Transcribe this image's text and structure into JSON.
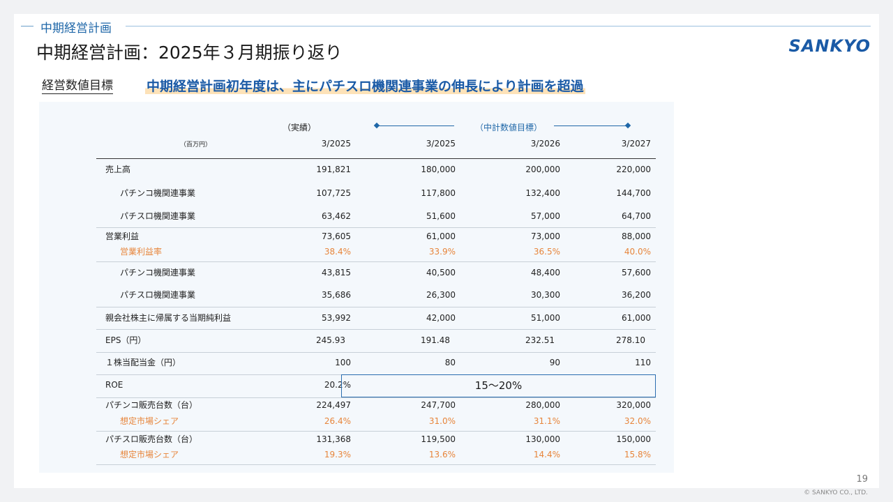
{
  "header": {
    "section_label": "中期経営計画",
    "title": "中期経営計画：2025年３月期振り返り",
    "logo_text": "SANKYO"
  },
  "subheader": {
    "label": "経営数値目標",
    "headline": "中期経営計画初年度は、主にパチスロ機関連事業の伸長により計画を超過"
  },
  "table": {
    "unit": "（百万円）",
    "actual_header": "（実績）",
    "target_header": "（中計数値目標）",
    "columns": [
      "3/2025",
      "3/2025",
      "3/2026",
      "3/2027"
    ],
    "rows": {
      "sales": {
        "label": "売上高",
        "values": [
          "191,821",
          "180,000",
          "200,000",
          "220,000"
        ]
      },
      "sales_pachinko": {
        "label": "パチンコ機関連事業",
        "values": [
          "107,725",
          "117,800",
          "132,400",
          "144,700"
        ]
      },
      "sales_pachislot": {
        "label": "パチスロ機関連事業",
        "values": [
          "63,462",
          "51,600",
          "57,000",
          "64,700"
        ]
      },
      "op_income": {
        "label": "営業利益",
        "values": [
          "73,605",
          "61,000",
          "73,000",
          "88,000"
        ]
      },
      "op_margin": {
        "label": "営業利益率",
        "values": [
          "38.4%",
          "33.9%",
          "36.5%",
          "40.0%"
        ]
      },
      "op_pachinko": {
        "label": "パチンコ機関連事業",
        "values": [
          "43,815",
          "40,500",
          "48,400",
          "57,600"
        ]
      },
      "op_pachislot": {
        "label": "パチスロ機関連事業",
        "values": [
          "35,686",
          "26,300",
          "30,300",
          "36,200"
        ]
      },
      "net_income": {
        "label": "親会社株主に帰属する当期純利益",
        "values": [
          "53,992",
          "42,000",
          "51,000",
          "61,000"
        ]
      },
      "eps": {
        "label": "EPS（円）",
        "values": [
          "245.93",
          "191.48",
          "232.51",
          "278.10"
        ]
      },
      "dividend": {
        "label": "１株当配当金（円）",
        "values": [
          "100",
          "80",
          "90",
          "110"
        ]
      },
      "roe": {
        "label": "ROE",
        "actual": "20.2%",
        "target": "15～20%"
      },
      "pachinko_units": {
        "label": "パチンコ販売台数（台）",
        "values": [
          "224,497",
          "247,700",
          "280,000",
          "320,000"
        ]
      },
      "pachinko_share": {
        "label": "想定市場シェア",
        "values": [
          "26.4%",
          "31.0%",
          "31.1%",
          "32.0%"
        ]
      },
      "pachislot_units": {
        "label": "パチスロ販売台数（台）",
        "values": [
          "131,368",
          "119,500",
          "130,000",
          "150,000"
        ]
      },
      "pachislot_share": {
        "label": "想定市場シェア",
        "values": [
          "19.3%",
          "13.6%",
          "14.4%",
          "15.8%"
        ]
      }
    }
  },
  "footer": {
    "page_number": "19",
    "copyright": "© SANKYO CO., LTD."
  },
  "colors": {
    "accent_blue": "#1f67a8",
    "highlight_orange": "#e7853b",
    "panel_bg": "#f4f8fc"
  }
}
